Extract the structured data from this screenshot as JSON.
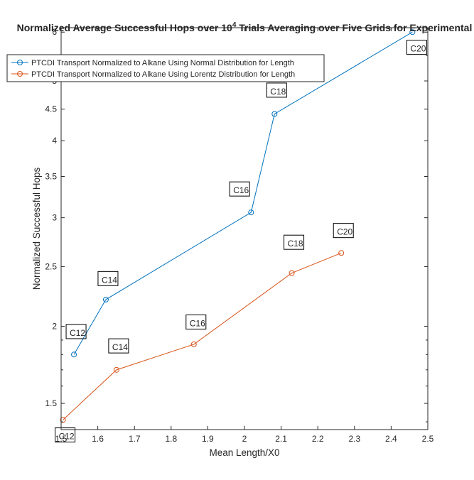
{
  "chart_data": {
    "type": "line",
    "title": "Normalized Average Successful Hops over 10",
    "title_superscript": "4",
    "title_rest": " Trials Averaging over Five Grids for Experimental",
    "xlabel": "Mean Length/X0",
    "ylabel": "Normalized Successful Hops",
    "xlim": [
      1.5,
      2.5
    ],
    "ylim": [
      1.36,
      6.1
    ],
    "y_scale": "log",
    "xticks": [
      1.5,
      1.6,
      1.7,
      1.8,
      1.9,
      2.0,
      2.1,
      2.2,
      2.3,
      2.4,
      2.5
    ],
    "xtick_labels": [
      "1.5",
      "1.6",
      "1.7",
      "1.8",
      "1.9",
      "2",
      "2.1",
      "2.2",
      "2.3",
      "2.4",
      "2.5"
    ],
    "yticks": [
      1.5,
      2,
      2.5,
      3,
      3.5,
      4,
      4.5,
      5,
      6
    ],
    "ytick_labels": [
      "1.5",
      "2",
      "2.5",
      "3",
      "3.5",
      "4",
      "4.5",
      "5",
      "6"
    ],
    "grid": false,
    "legend_position": "top-left",
    "series": [
      {
        "name": "PTCDI Transport Normalized to Alkane Using Normal Distribution for Length",
        "color": "#0072bd",
        "x": [
          1.535,
          1.622,
          2.018,
          2.082,
          2.458
        ],
        "y": [
          1.8,
          2.21,
          3.06,
          4.42,
          6.0
        ]
      },
      {
        "name": "PTCDI Transport Normalized to Alkane Using Lorentz Distribution for Length",
        "color": "#d95319",
        "x": [
          1.505,
          1.651,
          1.862,
          2.129,
          2.264
        ],
        "y": [
          1.41,
          1.7,
          1.87,
          2.44,
          2.63
        ]
      }
    ],
    "annotations": [
      {
        "text": "C12",
        "x": 1.505,
        "y": 1.305
      },
      {
        "text": "C14",
        "x": 1.651,
        "y": 1.82
      },
      {
        "text": "C16",
        "x": 1.862,
        "y": 1.99
      },
      {
        "text": "C18",
        "x": 2.129,
        "y": 2.68
      },
      {
        "text": "C20",
        "x": 2.264,
        "y": 2.8
      },
      {
        "text": "C12",
        "x": 1.535,
        "y": 1.92
      },
      {
        "text": "C14",
        "x": 1.622,
        "y": 2.34
      },
      {
        "text": "C16",
        "x": 1.981,
        "y": 3.27
      },
      {
        "text": "C18",
        "x": 2.082,
        "y": 4.73
      },
      {
        "text": "C20",
        "x": 2.464,
        "y": 5.55
      }
    ]
  }
}
